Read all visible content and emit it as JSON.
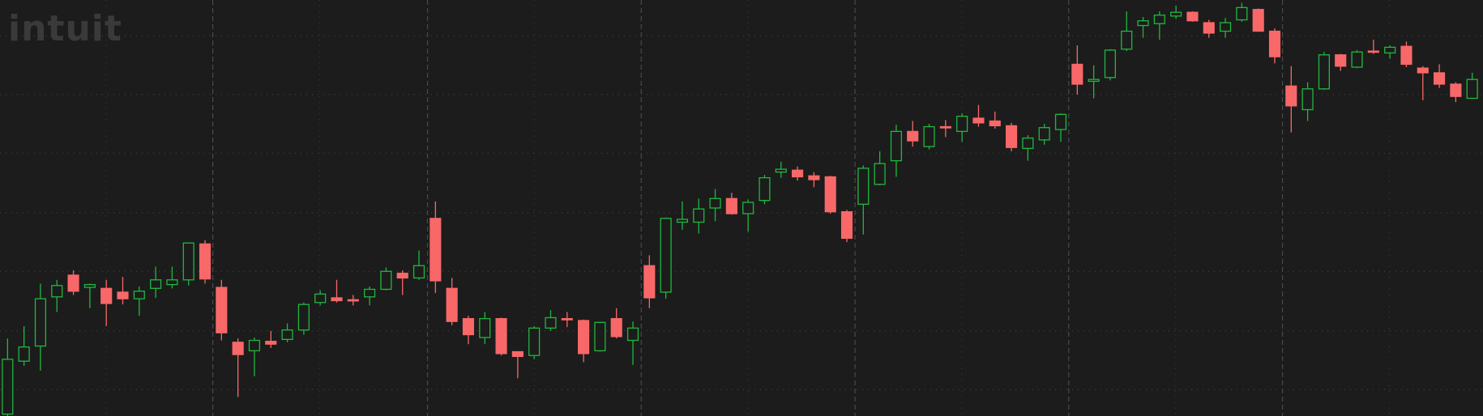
{
  "chart_data": {
    "type": "candlestick",
    "watermark": "intuit",
    "ylim": [
      0,
      440
    ],
    "yticks": [
      28,
      90,
      153,
      215,
      278,
      340,
      402
    ],
    "grid": true,
    "up_color": "#1fb83e",
    "down_color": "#f86868",
    "open": [
      2,
      58,
      74,
      126,
      149,
      136,
      135,
      131,
      124,
      135,
      139,
      144,
      182,
      136,
      78,
      69,
      79,
      81,
      91,
      120,
      125,
      123,
      126,
      134,
      151,
      146,
      209,
      135,
      103,
      83,
      103,
      68,
      64,
      93,
      103,
      101,
      69,
      103,
      80,
      159,
      131,
      205,
      205,
      220,
      230,
      214,
      228,
      258,
      260,
      254,
      253,
      216,
      224,
      245,
      270,
      301,
      285,
      306,
      301,
      315,
      312,
      307,
      283,
      292,
      303,
      372,
      354,
      358,
      388,
      413,
      415,
      423,
      427,
      416,
      407,
      419,
      430,
      407,
      349,
      324,
      346,
      382,
      369,
      386,
      384,
      391,
      368,
      363,
      351,
      336
    ],
    "high": [
      82,
      95,
      140,
      144,
      154,
      140,
      144,
      147,
      137,
      158,
      158,
      183,
      186,
      144,
      82,
      83,
      90,
      98,
      120,
      133,
      144,
      128,
      137,
      157,
      154,
      175,
      227,
      146,
      106,
      110,
      104,
      68,
      95,
      112,
      110,
      102,
      99,
      114,
      100,
      170,
      210,
      227,
      230,
      240,
      236,
      229,
      255,
      269,
      264,
      258,
      254,
      218,
      265,
      280,
      308,
      312,
      309,
      313,
      320,
      329,
      322,
      310,
      297,
      309,
      320,
      392,
      371,
      388,
      428,
      422,
      428,
      434,
      428,
      419,
      421,
      437,
      431,
      410,
      370,
      353,
      385,
      383,
      387,
      398,
      392,
      396,
      370,
      372,
      353,
      363
    ],
    "low": [
      0,
      53,
      48,
      110,
      128,
      114,
      95,
      118,
      106,
      125,
      135,
      138,
      140,
      80,
      20,
      42,
      72,
      78,
      86,
      117,
      120,
      117,
      117,
      133,
      128,
      144,
      130,
      96,
      76,
      76,
      64,
      40,
      60,
      90,
      94,
      57,
      68,
      82,
      54,
      114,
      124,
      197,
      193,
      206,
      213,
      195,
      224,
      252,
      249,
      242,
      214,
      184,
      192,
      244,
      253,
      285,
      282,
      295,
      290,
      306,
      304,
      280,
      270,
      287,
      290,
      340,
      336,
      355,
      386,
      400,
      398,
      420,
      417,
      400,
      400,
      417,
      407,
      373,
      300,
      312,
      345,
      365,
      368,
      383,
      378,
      369,
      334,
      347,
      332,
      336
    ],
    "close": [
      60,
      73,
      124,
      138,
      132,
      139,
      119,
      124,
      132,
      144,
      144,
      183,
      145,
      88,
      65,
      80,
      76,
      91,
      118,
      129,
      122,
      122,
      134,
      153,
      146,
      159,
      143,
      100,
      86,
      103,
      66,
      63,
      93,
      104,
      102,
      66,
      99,
      84,
      93,
      125,
      209,
      208,
      219,
      230,
      214,
      226,
      252,
      261,
      253,
      250,
      216,
      188,
      262,
      267,
      301,
      291,
      306,
      305,
      317,
      310,
      307,
      284,
      294,
      305,
      319,
      351,
      356,
      387,
      407,
      418,
      424,
      427,
      418,
      405,
      416,
      432,
      407,
      380,
      328,
      346,
      382,
      370,
      385,
      385,
      390,
      372,
      363,
      351,
      338,
      356
    ]
  }
}
